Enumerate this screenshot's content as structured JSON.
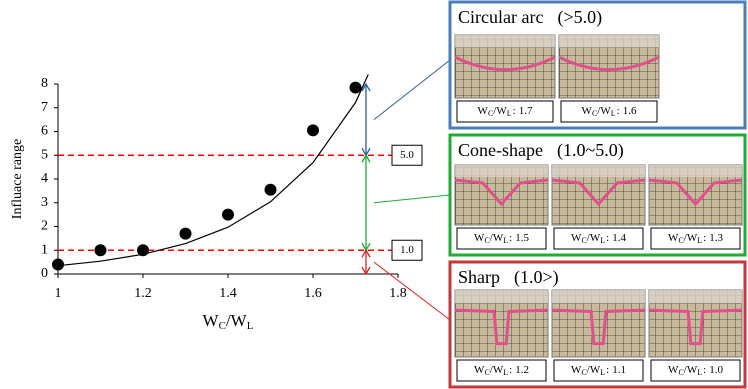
{
  "chart_data": {
    "type": "scatter",
    "y_label": "Influace range",
    "x_label": {
      "w1": "W",
      "sub1": "C",
      "w2": "/W",
      "sub2": "L"
    },
    "x": [
      1,
      1.1,
      1.2,
      1.3,
      1.4,
      1.5,
      1.6,
      1.7
    ],
    "values": [
      0.4,
      1.0,
      1.0,
      1.7,
      2.5,
      3.55,
      6.05,
      7.85
    ],
    "color": "#000000",
    "trend": {
      "x": [
        1,
        1.1,
        1.2,
        1.3,
        1.4,
        1.5,
        1.6,
        1.7,
        1.73
      ],
      "values": [
        0.35,
        0.54,
        0.83,
        1.28,
        1.97,
        3.04,
        4.69,
        7.22,
        8.4
      ],
      "color": "#000000"
    },
    "xlim": [
      1,
      1.8
    ],
    "xticks": [
      1,
      1.2,
      1.4,
      1.6,
      1.8
    ],
    "ylim": [
      0,
      8
    ],
    "yticks": [
      0,
      1,
      2,
      3,
      4,
      5,
      6,
      7,
      8
    ],
    "thresholds": [
      {
        "value": 5,
        "label": "5.0"
      },
      {
        "value": 1,
        "label": "1.0"
      }
    ],
    "threshold_color": "#ff0000",
    "ranges": [
      {
        "from": 5,
        "to": 8,
        "color": "#2e5c9e"
      },
      {
        "from": 1,
        "to": 5,
        "color": "#22aa33"
      },
      {
        "from": 0,
        "to": 1,
        "color": "#dd2222"
      }
    ]
  },
  "panels": [
    {
      "title": "Circular arc",
      "range": "(>5.0)",
      "color": "#4a7ebb",
      "shape": "arc",
      "ratios": [
        "1.7",
        "1.6"
      ]
    },
    {
      "title": "Cone-shape",
      "range": "(1.0~5.0)",
      "color": "#22aa33",
      "shape": "cone",
      "ratios": [
        "1.5",
        "1.4",
        "1.3"
      ]
    },
    {
      "title": "Sharp",
      "range": "(1.0>)",
      "color": "#c0393b",
      "shape": "sharp",
      "ratios": [
        "1.2",
        "1.1",
        "1.0"
      ]
    }
  ],
  "ratio_sep": ":"
}
